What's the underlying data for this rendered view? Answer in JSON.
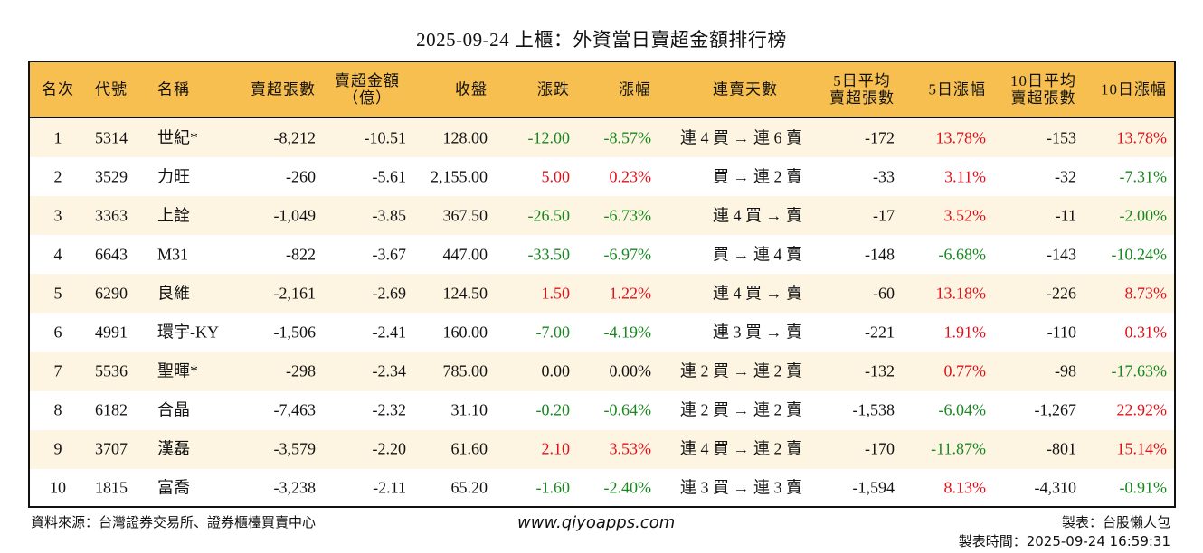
{
  "title": "2025-09-24 上櫃：外資當日賣超金額排行榜",
  "headers": [
    "名次",
    "代號",
    "名稱",
    "賣超張數",
    "賣超金額\n（億）",
    "收盤",
    "漲跌",
    "漲幅",
    "連賣天數",
    "5日平均\n賣超張數",
    "5日漲幅",
    "10日平均\n賣超張數",
    "10日漲幅"
  ],
  "colors": {
    "header_bg": "#f7bf50",
    "odd_row_bg": "#fdf5e2",
    "up": "#e0101a",
    "down": "#17871f"
  },
  "rows": [
    [
      "1",
      "5314",
      "世紀*",
      "-8,212",
      "-10.51",
      "128.00",
      "-12.00",
      "-8.57%",
      "連 4 買 → 連 6 賣",
      "-172",
      "13.78%",
      "-153",
      "13.78%"
    ],
    [
      "2",
      "3529",
      "力旺",
      "-260",
      "-5.61",
      "2,155.00",
      "5.00",
      "0.23%",
      "買 → 連 2 賣",
      "-33",
      "3.11%",
      "-32",
      "-7.31%"
    ],
    [
      "3",
      "3363",
      "上詮",
      "-1,049",
      "-3.85",
      "367.50",
      "-26.50",
      "-6.73%",
      "連 4 買 → 賣",
      "-17",
      "3.52%",
      "-11",
      "-2.00%"
    ],
    [
      "4",
      "6643",
      "M31",
      "-822",
      "-3.67",
      "447.00",
      "-33.50",
      "-6.97%",
      "買 → 連 4 賣",
      "-148",
      "-6.68%",
      "-143",
      "-10.24%"
    ],
    [
      "5",
      "6290",
      "良維",
      "-2,161",
      "-2.69",
      "124.50",
      "1.50",
      "1.22%",
      "連 4 買 → 賣",
      "-60",
      "13.18%",
      "-226",
      "8.73%"
    ],
    [
      "6",
      "4991",
      "環宇-KY",
      "-1,506",
      "-2.41",
      "160.00",
      "-7.00",
      "-4.19%",
      "連 3 買 → 賣",
      "-221",
      "1.91%",
      "-110",
      "0.31%"
    ],
    [
      "7",
      "5536",
      "聖暉*",
      "-298",
      "-2.34",
      "785.00",
      "0.00",
      "0.00%",
      "連 2 買 → 連 2 賣",
      "-132",
      "0.77%",
      "-98",
      "-17.63%"
    ],
    [
      "8",
      "6182",
      "合晶",
      "-7,463",
      "-2.32",
      "31.10",
      "-0.20",
      "-0.64%",
      "連 2 買 → 連 2 賣",
      "-1,538",
      "-6.04%",
      "-1,267",
      "22.92%"
    ],
    [
      "9",
      "3707",
      "漢磊",
      "-3,579",
      "-2.20",
      "61.60",
      "2.10",
      "3.53%",
      "連 4 買 → 連 2 賣",
      "-170",
      "-11.87%",
      "-801",
      "15.14%"
    ],
    [
      "10",
      "1815",
      "富喬",
      "-3,238",
      "-2.11",
      "65.20",
      "-1.60",
      "-2.40%",
      "連 3 買 → 連 3 賣",
      "-1,594",
      "8.13%",
      "-4,310",
      "-0.91%"
    ]
  ],
  "footer": {
    "source": "資料來源：台灣證券交易所、證券櫃檯買賣中心",
    "site": "www.qiyoapps.com",
    "maker": "製表：台股懶人包",
    "time": "製表時間：2025-09-24 16:59:31"
  }
}
